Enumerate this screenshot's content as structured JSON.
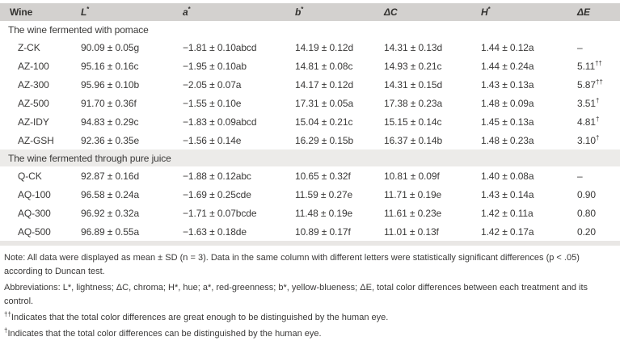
{
  "colors": {
    "header_bg": "#d3d1cf",
    "section_bg": "#ecebe9",
    "strip_bg": "#e9e7e5",
    "text": "#3a3938"
  },
  "table": {
    "columns": [
      {
        "key": "wine",
        "label": "Wine",
        "sup": "",
        "italic": false
      },
      {
        "key": "L",
        "label": "L",
        "sup": "*",
        "italic": true
      },
      {
        "key": "a",
        "label": "a",
        "sup": "*",
        "italic": true
      },
      {
        "key": "b",
        "label": "b",
        "sup": "*",
        "italic": true
      },
      {
        "key": "dC",
        "label": "ΔC",
        "sup": "",
        "italic": true
      },
      {
        "key": "H",
        "label": "H",
        "sup": "*",
        "italic": true
      },
      {
        "key": "dE",
        "label": "ΔE",
        "sup": "",
        "italic": true
      }
    ],
    "sections": [
      {
        "header": "The wine fermented with pomace",
        "shaded": false,
        "rows": [
          {
            "wine": "Z-CK",
            "L": "90.09 ± 0.05g",
            "a": "−1.81 ± 0.10abcd",
            "b": "14.19 ± 0.12d",
            "dC": "14.31 ± 0.13d",
            "H": "1.44 ± 0.12a",
            "dE": "–",
            "dE_sup": ""
          },
          {
            "wine": "AZ-100",
            "L": "95.16 ± 0.16c",
            "a": "−1.95 ± 0.10ab",
            "b": "14.81 ± 0.08c",
            "dC": "14.93 ± 0.21c",
            "H": "1.44 ± 0.24a",
            "dE": "5.11",
            "dE_sup": "††"
          },
          {
            "wine": "AZ-300",
            "L": "95.96 ± 0.10b",
            "a": "−2.05 ± 0.07a",
            "b": "14.17 ± 0.12d",
            "dC": "14.31 ± 0.15d",
            "H": "1.43 ± 0.13a",
            "dE": "5.87",
            "dE_sup": "††"
          },
          {
            "wine": "AZ-500",
            "L": "91.70 ± 0.36f",
            "a": "−1.55 ± 0.10e",
            "b": "17.31 ± 0.05a",
            "dC": "17.38 ± 0.23a",
            "H": "1.48 ± 0.09a",
            "dE": "3.51",
            "dE_sup": "†"
          },
          {
            "wine": "AZ-IDY",
            "L": "94.83 ± 0.29c",
            "a": "−1.83 ± 0.09abcd",
            "b": "15.04 ± 0.21c",
            "dC": "15.15 ± 0.14c",
            "H": "1.45 ± 0.13a",
            "dE": "4.81",
            "dE_sup": "†"
          },
          {
            "wine": "AZ-GSH",
            "L": "92.36 ± 0.35e",
            "a": "−1.56 ± 0.14e",
            "b": "16.29 ± 0.15b",
            "dC": "16.37 ± 0.14b",
            "H": "1.48 ± 0.23a",
            "dE": "3.10",
            "dE_sup": "†"
          }
        ]
      },
      {
        "header": "The wine fermented through pure juice",
        "shaded": true,
        "rows": [
          {
            "wine": "Q-CK",
            "L": "92.87 ± 0.16d",
            "a": "−1.88 ± 0.12abc",
            "b": "10.65 ± 0.32f",
            "dC": "10.81 ± 0.09f",
            "H": "1.40 ± 0.08a",
            "dE": "–",
            "dE_sup": ""
          },
          {
            "wine": "AQ-100",
            "L": "96.58 ± 0.24a",
            "a": "−1.69 ± 0.25cde",
            "b": "11.59 ± 0.27e",
            "dC": "11.71 ± 0.19e",
            "H": "1.43 ± 0.14a",
            "dE": "0.90",
            "dE_sup": ""
          },
          {
            "wine": "AQ-300",
            "L": "96.92 ± 0.32a",
            "a": "−1.71 ± 0.07bcde",
            "b": "11.48 ± 0.19e",
            "dC": "11.61 ± 0.23e",
            "H": "1.42 ± 0.11a",
            "dE": "0.80",
            "dE_sup": ""
          },
          {
            "wine": "AQ-500",
            "L": "96.89 ± 0.55a",
            "a": "−1.63 ± 0.18de",
            "b": "10.89 ± 0.17f",
            "dC": "11.01 ± 0.13f",
            "H": "1.42 ± 0.17a",
            "dE": "0.20",
            "dE_sup": ""
          }
        ]
      }
    ]
  },
  "footnotes": {
    "lines": [
      [
        {
          "t": "Note: ",
          "i": true
        },
        {
          "t": "All data were displayed as mean ± "
        },
        {
          "t": "SD",
          "i": true
        },
        {
          "t": " ("
        },
        {
          "t": "n",
          "i": true
        },
        {
          "t": " = 3). Data in the same column with different letters were statistically significant differences ("
        },
        {
          "t": "p",
          "i": true
        },
        {
          "t": " < .05) according to Duncan test."
        }
      ],
      [
        {
          "t": "Abbreviations: "
        },
        {
          "t": "L",
          "i": true
        },
        {
          "t": "*, lightness; Δ"
        },
        {
          "t": "C",
          "i": true
        },
        {
          "t": ", chroma; "
        },
        {
          "t": "H",
          "i": true
        },
        {
          "t": "*, hue; "
        },
        {
          "t": "a",
          "i": true
        },
        {
          "t": "*, red-greenness; "
        },
        {
          "t": "b",
          "i": true
        },
        {
          "t": "*, yellow-blueness; Δ"
        },
        {
          "t": "E",
          "i": true
        },
        {
          "t": ", total color differences between each treatment and its control."
        }
      ],
      [
        {
          "t": "††",
          "sup": true
        },
        {
          "t": "Indicates that the total color differences are great enough to be distinguished by the human eye."
        }
      ],
      [
        {
          "t": "†",
          "sup": true
        },
        {
          "t": "Indicates that the total color differences can be distinguished by the human eye."
        }
      ]
    ]
  }
}
